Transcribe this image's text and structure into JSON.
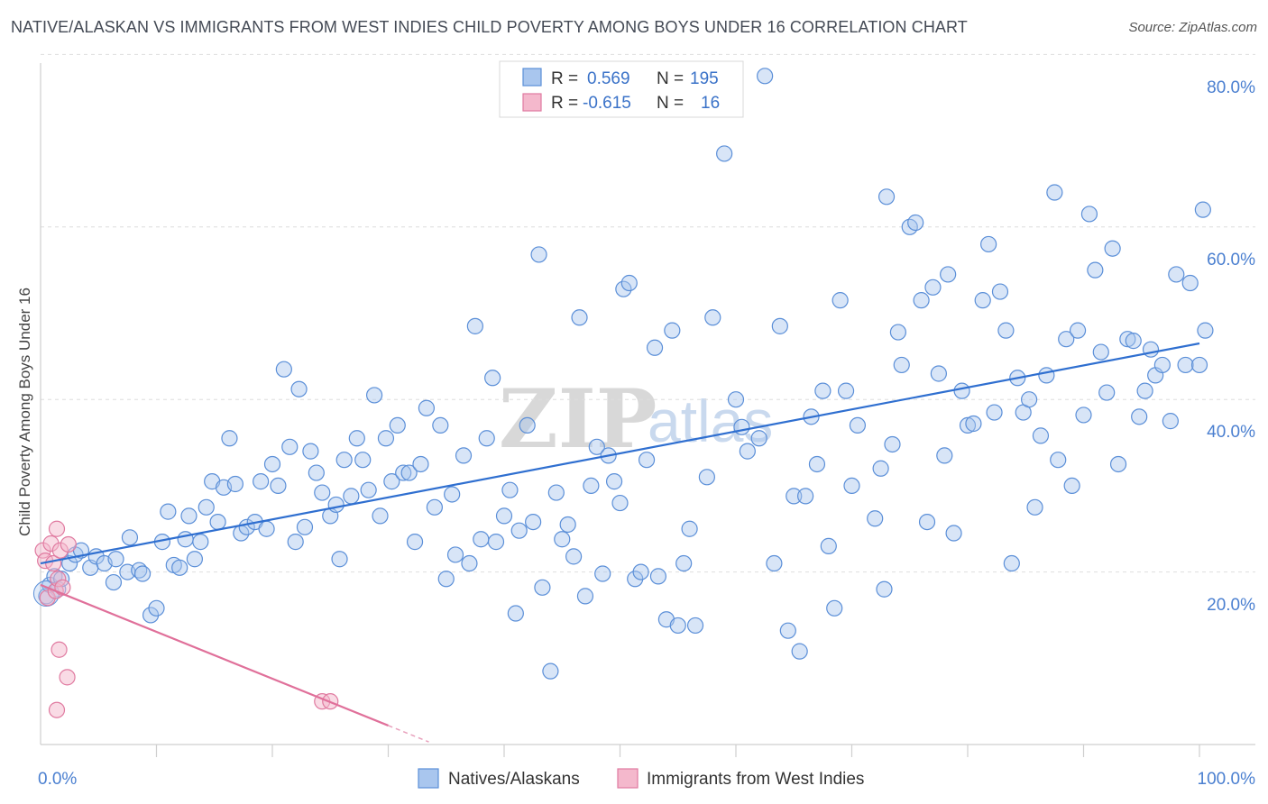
{
  "chart_data": {
    "type": "scatter",
    "title": "NATIVE/ALASKAN VS IMMIGRANTS FROM WEST INDIES CHILD POVERTY AMONG BOYS UNDER 16 CORRELATION CHART",
    "source": "Source: ZipAtlas.com",
    "xlabel": "",
    "ylabel": "Child Poverty Among Boys Under 16",
    "xlim": [
      0,
      100
    ],
    "ylim": [
      0,
      82
    ],
    "x_tick_labels": [
      {
        "value": 0,
        "label": "0.0%"
      },
      {
        "value": 100,
        "label": "100.0%"
      }
    ],
    "y_tick_labels": [
      {
        "value": 20,
        "label": "20.0%"
      },
      {
        "value": 40,
        "label": "40.0%"
      },
      {
        "value": 60,
        "label": "60.0%"
      },
      {
        "value": 80,
        "label": "80.0%"
      }
    ],
    "legend": {
      "placement": "top-center",
      "rows": [
        {
          "r_label": "R =",
          "r_value": "0.569",
          "n_label": "N =",
          "n_value": "195"
        },
        {
          "r_label": "R =",
          "r_value": "-0.615",
          "n_label": "N =",
          "n_value": "16"
        }
      ]
    },
    "bottom_legend": [
      "Natives/Alaskans",
      "Immigrants from West Indies"
    ],
    "watermark": {
      "part1": "ZIP",
      "part2": "atlas"
    },
    "colors": {
      "blue": "#5b8fd8",
      "blue_fill": "#a9c6ee",
      "pink": "#e07aa0",
      "pink_fill": "#f4b8cc",
      "blue_line": "#2f6fd0",
      "pink_line": "#e0709a"
    },
    "series": [
      {
        "name": "Natives/Alaskans",
        "trend": {
          "x0": 0,
          "y0": 21.0,
          "x1": 100,
          "y1": 46.5
        },
        "points": [
          [
            0.5,
            17.2
          ],
          [
            0.8,
            18.5
          ],
          [
            1.2,
            19.5
          ],
          [
            1.5,
            18.0
          ],
          [
            1.8,
            19.2
          ],
          [
            2.5,
            21.0
          ],
          [
            3,
            22.0
          ],
          [
            3.5,
            22.5
          ],
          [
            4.3,
            20.5
          ],
          [
            4.8,
            21.8
          ],
          [
            5.5,
            21.0
          ],
          [
            6.5,
            21.5
          ],
          [
            6.3,
            18.8
          ],
          [
            7.5,
            20.0
          ],
          [
            7.7,
            24.0
          ],
          [
            8.5,
            20.2
          ],
          [
            8.8,
            19.8
          ],
          [
            9.5,
            15.0
          ],
          [
            10,
            15.8
          ],
          [
            10.5,
            23.5
          ],
          [
            11,
            27.0
          ],
          [
            11.5,
            20.8
          ],
          [
            12,
            20.5
          ],
          [
            12.5,
            23.8
          ],
          [
            12.8,
            26.5
          ],
          [
            13.3,
            21.5
          ],
          [
            13.8,
            23.5
          ],
          [
            14.3,
            27.5
          ],
          [
            14.8,
            30.5
          ],
          [
            15.3,
            25.8
          ],
          [
            15.8,
            29.8
          ],
          [
            16.3,
            35.5
          ],
          [
            16.8,
            30.2
          ],
          [
            17.3,
            24.5
          ],
          [
            17.8,
            25.2
          ],
          [
            18.5,
            25.8
          ],
          [
            19,
            30.5
          ],
          [
            19.5,
            25.0
          ],
          [
            20,
            32.5
          ],
          [
            20.5,
            30.0
          ],
          [
            21,
            43.5
          ],
          [
            21.5,
            34.5
          ],
          [
            22,
            23.5
          ],
          [
            22.3,
            41.2
          ],
          [
            22.8,
            25.2
          ],
          [
            23.3,
            34.0
          ],
          [
            23.8,
            31.5
          ],
          [
            24.3,
            29.2
          ],
          [
            25,
            26.5
          ],
          [
            25.5,
            27.8
          ],
          [
            25.8,
            21.5
          ],
          [
            26.2,
            33.0
          ],
          [
            26.8,
            28.8
          ],
          [
            27.3,
            35.5
          ],
          [
            27.8,
            33.0
          ],
          [
            28.3,
            29.5
          ],
          [
            28.8,
            40.5
          ],
          [
            29.3,
            26.5
          ],
          [
            29.8,
            35.5
          ],
          [
            30.3,
            30.5
          ],
          [
            30.8,
            37.0
          ],
          [
            31.3,
            31.5
          ],
          [
            31.8,
            31.5
          ],
          [
            32.3,
            23.5
          ],
          [
            32.8,
            32.5
          ],
          [
            33.3,
            39.0
          ],
          [
            34,
            27.5
          ],
          [
            34.5,
            37.0
          ],
          [
            35,
            19.2
          ],
          [
            35.5,
            29.0
          ],
          [
            35.8,
            22.0
          ],
          [
            36.5,
            33.5
          ],
          [
            37,
            21.0
          ],
          [
            37.5,
            48.5
          ],
          [
            38,
            23.8
          ],
          [
            38.5,
            35.5
          ],
          [
            39,
            42.5
          ],
          [
            39.3,
            23.5
          ],
          [
            40,
            26.5
          ],
          [
            40.5,
            29.5
          ],
          [
            41,
            15.2
          ],
          [
            41.3,
            24.8
          ],
          [
            42,
            37.0
          ],
          [
            42.5,
            25.8
          ],
          [
            43,
            56.8
          ],
          [
            43.3,
            18.2
          ],
          [
            44,
            8.5
          ],
          [
            44.5,
            29.2
          ],
          [
            45,
            23.8
          ],
          [
            45.5,
            25.5
          ],
          [
            46,
            21.8
          ],
          [
            46.5,
            49.5
          ],
          [
            47,
            17.2
          ],
          [
            47.5,
            30.0
          ],
          [
            48,
            34.5
          ],
          [
            48.5,
            19.8
          ],
          [
            49,
            33.5
          ],
          [
            49.5,
            30.5
          ],
          [
            50,
            28.0
          ],
          [
            50.3,
            52.8
          ],
          [
            50.8,
            53.5
          ],
          [
            51.3,
            19.2
          ],
          [
            51.8,
            20.0
          ],
          [
            52.3,
            33.0
          ],
          [
            53,
            46.0
          ],
          [
            53.3,
            19.5
          ],
          [
            54,
            14.5
          ],
          [
            54.5,
            48.0
          ],
          [
            55,
            13.8
          ],
          [
            55.5,
            21.0
          ],
          [
            56,
            25.0
          ],
          [
            56.5,
            13.8
          ],
          [
            57.5,
            31.0
          ],
          [
            58,
            49.5
          ],
          [
            59,
            68.5
          ],
          [
            60,
            40.0
          ],
          [
            60.5,
            36.8
          ],
          [
            61,
            34.0
          ],
          [
            62,
            35.5
          ],
          [
            62.5,
            77.5
          ],
          [
            63.3,
            21.0
          ],
          [
            63.8,
            48.5
          ],
          [
            64.5,
            13.2
          ],
          [
            65,
            28.8
          ],
          [
            65.5,
            10.8
          ],
          [
            66,
            28.8
          ],
          [
            66.5,
            38.0
          ],
          [
            67,
            32.5
          ],
          [
            67.5,
            41.0
          ],
          [
            68,
            23.0
          ],
          [
            68.5,
            15.8
          ],
          [
            69,
            51.5
          ],
          [
            69.5,
            41.0
          ],
          [
            70,
            30.0
          ],
          [
            70.5,
            37.0
          ],
          [
            72,
            26.2
          ],
          [
            72.5,
            32.0
          ],
          [
            72.8,
            18.0
          ],
          [
            73,
            63.5
          ],
          [
            73.5,
            34.8
          ],
          [
            74,
            47.8
          ],
          [
            74.3,
            44.0
          ],
          [
            75,
            60.0
          ],
          [
            75.5,
            60.5
          ],
          [
            76,
            51.5
          ],
          [
            76.5,
            25.8
          ],
          [
            77,
            53.0
          ],
          [
            77.5,
            43.0
          ],
          [
            78,
            33.5
          ],
          [
            78.3,
            54.5
          ],
          [
            78.8,
            24.5
          ],
          [
            79.5,
            41.0
          ],
          [
            80,
            37.0
          ],
          [
            80.5,
            37.2
          ],
          [
            81.3,
            51.5
          ],
          [
            81.8,
            58.0
          ],
          [
            82.3,
            38.5
          ],
          [
            82.8,
            52.5
          ],
          [
            83.3,
            48.0
          ],
          [
            83.8,
            21.0
          ],
          [
            84.3,
            42.5
          ],
          [
            84.8,
            38.5
          ],
          [
            85.3,
            40.0
          ],
          [
            85.8,
            27.5
          ],
          [
            86.3,
            35.8
          ],
          [
            86.8,
            42.8
          ],
          [
            87.5,
            64.0
          ],
          [
            87.8,
            33.0
          ],
          [
            88.5,
            47.0
          ],
          [
            89,
            30.0
          ],
          [
            89.5,
            48.0
          ],
          [
            90,
            38.2
          ],
          [
            90.5,
            61.5
          ],
          [
            91,
            55.0
          ],
          [
            91.5,
            45.5
          ],
          [
            92,
            40.8
          ],
          [
            92.5,
            57.5
          ],
          [
            93,
            32.5
          ],
          [
            93.8,
            47.0
          ],
          [
            94.3,
            46.8
          ],
          [
            94.8,
            38.0
          ],
          [
            95.3,
            41.0
          ],
          [
            95.8,
            45.8
          ],
          [
            96.2,
            42.8
          ],
          [
            96.8,
            44.0
          ],
          [
            97.5,
            37.5
          ],
          [
            98,
            54.5
          ],
          [
            98.8,
            44.0
          ],
          [
            99.2,
            53.5
          ],
          [
            100,
            44.0
          ],
          [
            100.5,
            48.0
          ],
          [
            100.3,
            62.0
          ]
        ]
      },
      {
        "name": "Immigrants from West Indies",
        "trend": {
          "x0": 0,
          "y0": 18.5,
          "x1": 30,
          "y1": 2.2,
          "dash_x1": 33.5,
          "dash_y1": 0.3
        },
        "points": [
          [
            0.2,
            22.5
          ],
          [
            0.4,
            21.3
          ],
          [
            0.6,
            17.0
          ],
          [
            0.9,
            23.3
          ],
          [
            1.1,
            21.0
          ],
          [
            1.3,
            17.8
          ],
          [
            1.5,
            19.2
          ],
          [
            1.7,
            22.5
          ],
          [
            1.9,
            18.2
          ],
          [
            1.6,
            11.0
          ],
          [
            1.4,
            25.0
          ],
          [
            2.3,
            7.8
          ],
          [
            2.4,
            23.2
          ],
          [
            1.4,
            4.0
          ],
          [
            24.3,
            5.0
          ],
          [
            25,
            5.0
          ]
        ]
      }
    ]
  }
}
